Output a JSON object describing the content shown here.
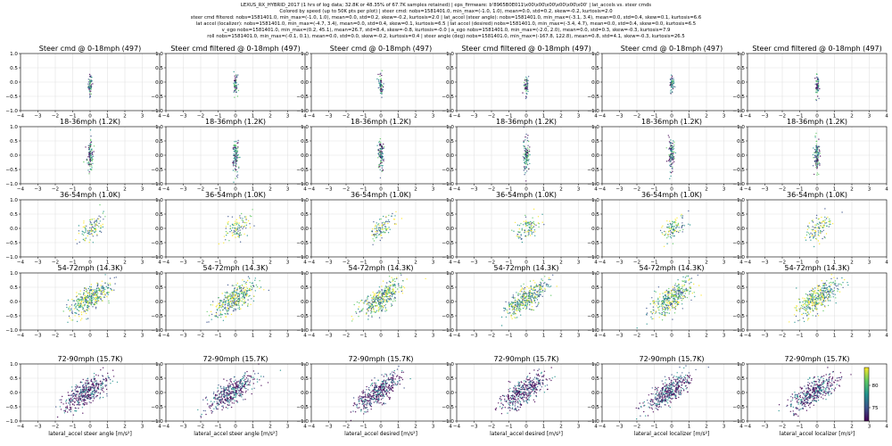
{
  "figure": {
    "header_lines": [
      "LEXUS_RX_HYBRID_2017 (1 hrs of log data; 32.8K or 48.35% of 67.7K samples retained) | eps_firmware: b'8965B0E011\\x00\\x00\\x00\\x00\\x00\\x00' | lat_accels vs. steer cmds",
      "Colored by  speed (up to 50K pts per plot) | steer cmd: nobs=1581401.0, min_max=(-1.0, 1.0), mean=0.0, std=0.2, skew=-0.2, kurtosis=2.0",
      "steer cmd filtered: nobs=1581401.0, min_max=(-1.0, 1.0), mean=0.0, std=0.2, skew=-0.2, kurtosis=2.0 | lat_accel (steer angle): nobs=1581401.0, min_max=(-3.1, 3.4), mean=0.0, std=0.4, skew=0.1, kurtosis=6.6",
      "lat accel (localizer): nobs=1581401.0, min_max=(-4.7, 3.4), mean=0.0, std=0.4, skew=0.1, kurtosis=6.5 | lat accel (desired) nobs=1581401.0, min_max=(-3.4, 4.7), mean=0.0, std=0.4, skew=0.0, kurtosis=6.5",
      "v_ego nobs=1581401.0, min_max=(0.2, 45.1), mean=26.7, std=8.4, skew=-0.8, kurtosis=-0.0 | a_ego nobs=1581401.0, min_max=(-2.0, 2.0), mean=0.0, std=0.3, skew=-0.3, kurtosis=7.9",
      "roll nobs=1581401.0, min_max=(-0.1, 0.1), mean=0.0, std=0.0, skew=-0.2, kurtosis=0.4 | steer angle (deg) nobs=1581401.0, min_max=(-167.8, 122.8), mean=0.8, std=4.1, skew=-0.3, kurtosis=26.5"
    ]
  },
  "chart_data": {
    "type": "scatter",
    "layout": {
      "rows": 5,
      "cols": 6
    },
    "xlim": [
      -4,
      4
    ],
    "ylim": [
      -1.0,
      1.0
    ],
    "xticks": [
      "−4",
      "−3",
      "−2",
      "−1",
      "0",
      "1",
      "2",
      "3",
      "4"
    ],
    "yticks": [
      "1.0",
      "0.5",
      "0.0",
      "−0.5",
      "−1.0"
    ],
    "grid": true,
    "color_by": "speed",
    "colormap": [
      "#440154",
      "#3b528b",
      "#21918c",
      "#5ec962",
      "#fde725"
    ],
    "colorbar": {
      "range": [
        72,
        84
      ],
      "ticks": [
        "80",
        "75"
      ],
      "tick_values": [
        80,
        75
      ]
    },
    "xlabels": [
      "lateral_accel steer angle [m/s²]",
      "lateral_accel steer angle [m/s²]",
      "lateral_accel desired [m/s²]",
      "lateral_accel desired [m/s²]",
      "lateral_accel localizer [m/s²]",
      "lateral_accel localizer [m/s²]"
    ],
    "row_titles": [
      [
        "Steer cmd @ 0-18mph (497)",
        "Steer cmd filtered @ 0-18mph (497)",
        "Steer cmd @ 0-18mph (497)",
        "Steer cmd filtered @ 0-18mph (497)",
        "Steer cmd @ 0-18mph (497)",
        "Steer cmd filtered @ 0-18mph (497)"
      ],
      [
        "18-36mph (1.2K)",
        "18-36mph (1.2K)",
        "18-36mph (1.2K)",
        "18-36mph (1.2K)",
        "18-36mph (1.2K)",
        "18-36mph (1.2K)"
      ],
      [
        "36-54mph (1.0K)",
        "36-54mph (1.0K)",
        "36-54mph (1.0K)",
        "36-54mph (1.0K)",
        "36-54mph (1.0K)",
        "36-54mph (1.0K)"
      ],
      [
        "54-72mph (14.3K)",
        "54-72mph (14.3K)",
        "54-72mph (14.3K)",
        "54-72mph (14.3K)",
        "54-72mph (14.3K)",
        "54-72mph (14.3K)"
      ],
      [
        "72-90mph (15.7K)",
        "72-90mph (15.7K)",
        "72-90mph (15.7K)",
        "72-90mph (15.7K)",
        "72-90mph (15.7K)",
        "72-90mph (15.7K)"
      ]
    ],
    "row_distributions": [
      {
        "cx": 0.0,
        "cy": -0.1,
        "sx": 0.06,
        "sy": 0.18,
        "slope": 0.0,
        "palette": [
          0,
          1,
          2,
          3
        ],
        "n": 60
      },
      {
        "cx": 0.0,
        "cy": 0.0,
        "sx": 0.09,
        "sy": 0.28,
        "slope": 0.0,
        "palette": [
          0,
          1,
          2,
          3
        ],
        "n": 110
      },
      {
        "cx": 0.1,
        "cy": 0.0,
        "sx": 0.35,
        "sy": 0.2,
        "slope": 0.3,
        "palette": [
          1,
          2,
          3,
          4
        ],
        "n": 110
      },
      {
        "cx": 0.0,
        "cy": 0.1,
        "sx": 0.6,
        "sy": 0.22,
        "slope": 0.35,
        "palette": [
          1,
          2,
          3,
          4
        ],
        "n": 380
      },
      {
        "cx": -0.2,
        "cy": 0.0,
        "sx": 0.65,
        "sy": 0.22,
        "slope": 0.35,
        "palette": [
          0,
          0,
          1,
          2
        ],
        "n": 420
      }
    ]
  }
}
